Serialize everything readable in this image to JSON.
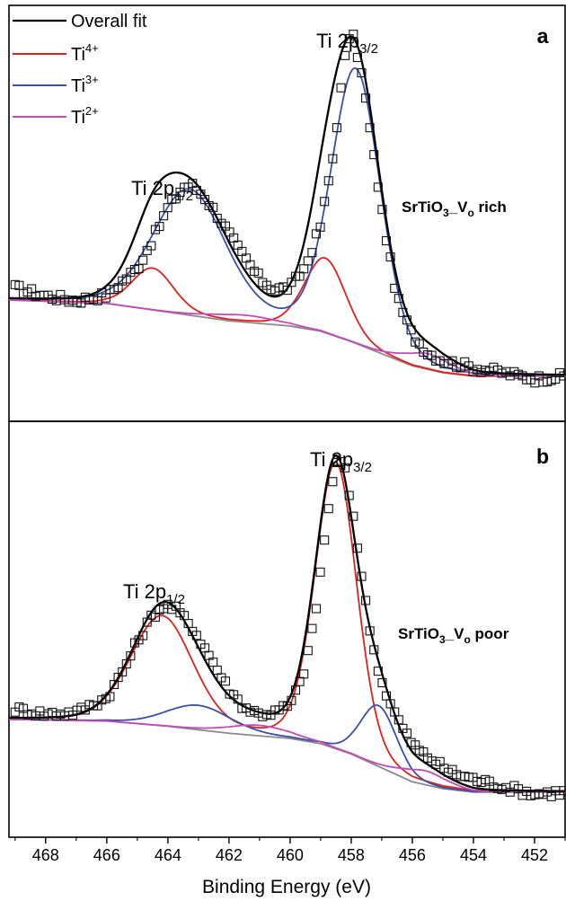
{
  "chart_data": {
    "type": "line",
    "xlabel": "Binding Energy (eV)",
    "x_reversed": true,
    "xlim": [
      469.2,
      451.0
    ],
    "x_ticks": [
      468,
      466,
      464,
      462,
      460,
      458,
      456,
      454,
      452
    ],
    "y_ticks_shown": false,
    "legend": {
      "placement": "top-left",
      "entries": [
        {
          "label": "Overall fit",
          "color": "#000000"
        },
        {
          "label": "Ti",
          "sup": "4+",
          "color": "#e0201c"
        },
        {
          "label": "Ti",
          "sup": "3+",
          "color": "#3a4fa8"
        },
        {
          "label": "Ti",
          "sup": "2+",
          "color": "#c24bb8"
        }
      ]
    },
    "panels": [
      {
        "panel_label": "a",
        "sample_label": {
          "base": "SrTiO",
          "sub1": "3",
          "mid": "_V",
          "sub2": "o",
          "tail": " rich"
        },
        "peak_labels": [
          {
            "base": "Ti 2p",
            "sub": "1/2",
            "x": 463.8,
            "y": 0.59
          },
          {
            "base": "Ti 2p",
            "sub": "3/2",
            "x": 458.6,
            "y": 1.05
          }
        ],
        "ylim": [
          -0.1,
          1.1
        ],
        "background": {
          "color": "#8a8a8a",
          "points": [
            [
              469.2,
              0.25
            ],
            [
              466,
              0.24
            ],
            [
              464,
              0.215
            ],
            [
              462,
              0.19
            ],
            [
              460,
              0.175
            ],
            [
              459,
              0.16
            ],
            [
              458,
              0.13
            ],
            [
              457,
              0.095
            ],
            [
              456,
              0.06
            ],
            [
              455,
              0.04
            ],
            [
              454,
              0.03
            ],
            [
              451,
              0.03
            ]
          ]
        },
        "components": [
          {
            "name": "Ti4+",
            "color": "#e0201c",
            "peaks": [
              {
                "center": 464.5,
                "height": 0.12,
                "fwhm": 1.6
              },
              {
                "center": 458.85,
                "height": 0.215,
                "fwhm": 1.6
              }
            ]
          },
          {
            "name": "Ti3+",
            "color": "#3a4fa8",
            "peaks": [
              {
                "center": 463.3,
                "height": 0.36,
                "fwhm": 2.8
              },
              {
                "center": 457.85,
                "height": 0.79,
                "fwhm": 1.9
              }
            ]
          },
          {
            "name": "Ti2+",
            "color": "#c24bb8",
            "peaks": [
              {
                "center": 461.5,
                "height": 0.02,
                "fwhm": 2.5
              },
              {
                "center": 455.5,
                "height": 0.045,
                "fwhm": 1.8
              }
            ]
          }
        ],
        "data_markers": {
          "shape": "open-square",
          "noise": 0.012,
          "points": [
            [
              469.0,
              0.285
            ],
            [
              468.0,
              0.262
            ],
            [
              467.0,
              0.248
            ],
            [
              466.0,
              0.264
            ],
            [
              465.0,
              0.342
            ],
            [
              464.5,
              0.425
            ],
            [
              464.0,
              0.515
            ],
            [
              463.5,
              0.576
            ],
            [
              463.2,
              0.58
            ],
            [
              462.8,
              0.548
            ],
            [
              462.3,
              0.485
            ],
            [
              461.7,
              0.398
            ],
            [
              461.0,
              0.312
            ],
            [
              460.5,
              0.28
            ],
            [
              460.0,
              0.286
            ],
            [
              459.5,
              0.345
            ],
            [
              459.0,
              0.465
            ],
            [
              458.6,
              0.662
            ],
            [
              458.3,
              0.882
            ],
            [
              458.1,
              1.012
            ],
            [
              457.9,
              1.004
            ],
            [
              457.6,
              0.876
            ],
            [
              457.3,
              0.688
            ],
            [
              456.9,
              0.455
            ],
            [
              456.5,
              0.255
            ],
            [
              456.0,
              0.148
            ],
            [
              455.5,
              0.098
            ],
            [
              455.0,
              0.075
            ],
            [
              454.0,
              0.055
            ],
            [
              453.0,
              0.04
            ],
            [
              452.0,
              0.022
            ],
            [
              451.0,
              0.03
            ]
          ]
        }
      },
      {
        "panel_label": "b",
        "sample_label": {
          "base": "SrTiO",
          "sub1": "3",
          "mid": "_V",
          "sub2": "o",
          "tail": " poor"
        },
        "peak_labels": [
          {
            "base": "Ti 2p",
            "sub": "1/2",
            "x": 465.7,
            "y": 0.615
          },
          {
            "base": "Ti 2p",
            "sub": "3/2",
            "x": 458.6,
            "y": 1.04
          }
        ],
        "ylim": [
          -0.1,
          1.1
        ],
        "background": {
          "color": "#8a8a8a",
          "points": [
            [
              469.2,
              0.24
            ],
            [
              466,
              0.235
            ],
            [
              464,
              0.22
            ],
            [
              462,
              0.2
            ],
            [
              460,
              0.185
            ],
            [
              459,
              0.17
            ],
            [
              458,
              0.14
            ],
            [
              457,
              0.1
            ],
            [
              456,
              0.06
            ],
            [
              455,
              0.04
            ],
            [
              454,
              0.03
            ],
            [
              451,
              0.03
            ]
          ]
        },
        "components": [
          {
            "name": "Ti4+",
            "color": "#e0201c",
            "peaks": [
              {
                "center": 464.2,
                "height": 0.315,
                "fwhm": 2.4
              },
              {
                "center": 458.5,
                "height": 0.825,
                "fwhm": 1.6
              }
            ]
          },
          {
            "name": "Ti3+",
            "color": "#3a4fa8",
            "peaks": [
              {
                "center": 463.0,
                "height": 0.07,
                "fwhm": 2.5
              },
              {
                "center": 457.1,
                "height": 0.175,
                "fwhm": 1.4
              }
            ]
          },
          {
            "name": "Ti2+",
            "color": "#c24bb8",
            "peaks": [
              {
                "center": 461.0,
                "height": 0.03,
                "fwhm": 2.4
              },
              {
                "center": 455.6,
                "height": 0.04,
                "fwhm": 1.8
              }
            ]
          }
        ],
        "data_markers": {
          "shape": "open-square",
          "noise": 0.012,
          "points": [
            [
              469.0,
              0.27
            ],
            [
              468.0,
              0.255
            ],
            [
              467.0,
              0.26
            ],
            [
              466.0,
              0.302
            ],
            [
              465.5,
              0.375
            ],
            [
              465.0,
              0.465
            ],
            [
              464.5,
              0.54
            ],
            [
              464.1,
              0.57
            ],
            [
              463.7,
              0.555
            ],
            [
              463.2,
              0.505
            ],
            [
              462.6,
              0.418
            ],
            [
              462.0,
              0.325
            ],
            [
              461.5,
              0.275
            ],
            [
              461.0,
              0.255
            ],
            [
              460.5,
              0.26
            ],
            [
              460.0,
              0.282
            ],
            [
              459.6,
              0.36
            ],
            [
              459.2,
              0.525
            ],
            [
              458.9,
              0.742
            ],
            [
              458.6,
              0.935
            ],
            [
              458.4,
              0.995
            ],
            [
              458.2,
              0.955
            ],
            [
              457.9,
              0.812
            ],
            [
              457.6,
              0.615
            ],
            [
              457.3,
              0.455
            ],
            [
              457.0,
              0.348
            ],
            [
              456.6,
              0.262
            ],
            [
              456.2,
              0.195
            ],
            [
              455.8,
              0.15
            ],
            [
              455.3,
              0.12
            ],
            [
              454.8,
              0.09
            ],
            [
              454.0,
              0.068
            ],
            [
              453.0,
              0.045
            ],
            [
              452.0,
              0.025
            ],
            [
              451.0,
              0.03
            ]
          ]
        }
      }
    ]
  }
}
